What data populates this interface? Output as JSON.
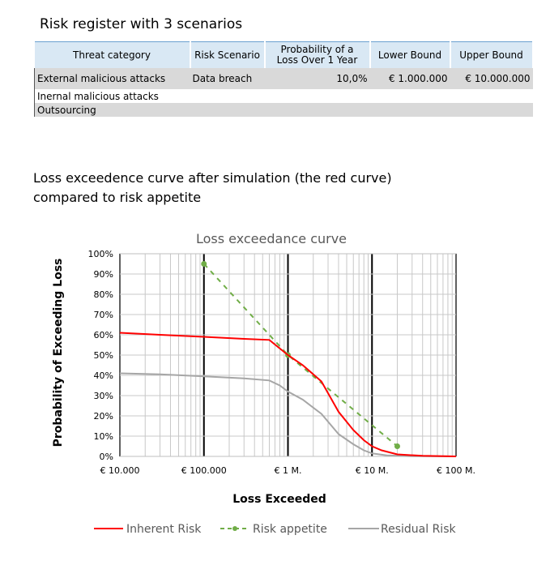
{
  "register": {
    "title": "Risk register with 3 scenarios",
    "headers": [
      "Threat category",
      "Risk Scenario",
      "Probability of a Loss Over 1 Year",
      "Lower Bound",
      "Upper Bound"
    ],
    "rows": [
      [
        "External malicious attacks",
        "Data breach",
        "10,0%",
        "€  1.000.000",
        "€  10.000.000"
      ],
      [
        "Inernal malicious attacks",
        "",
        "",
        "",
        ""
      ],
      [
        "Outsourcing",
        "",
        "",
        "",
        ""
      ]
    ]
  },
  "subtitle_line1": "Loss exceedence curve after simulation (the red curve)",
  "subtitle_line2": "compared to risk appetite",
  "colors": {
    "inherent": "#ff0000",
    "appetite": "#70ad47",
    "residual": "#a6a6a6"
  },
  "chart_data": {
    "type": "line",
    "title": "Loss exceedance curve",
    "xlabel": "Loss Exceeded",
    "ylabel": "Probability of Exceeding Loss",
    "xscale": "log",
    "xlim": [
      10000,
      100000000
    ],
    "ylim": [
      0,
      1
    ],
    "x_ticks": [
      10000,
      100000,
      1000000,
      10000000,
      100000000
    ],
    "x_tick_labels": [
      "€ 10.000",
      "€ 100.000",
      "€ 1 M.",
      "€ 10 M.",
      "€ 100 M."
    ],
    "y_ticks": [
      0,
      0.1,
      0.2,
      0.3,
      0.4,
      0.5,
      0.6,
      0.7,
      0.8,
      0.9,
      1.0
    ],
    "y_tick_labels": [
      "0%",
      "10%",
      "20%",
      "30%",
      "40%",
      "50%",
      "60%",
      "70%",
      "80%",
      "90%",
      "100%"
    ],
    "grid": true,
    "legend_position": "bottom",
    "series": [
      {
        "name": "Inherent Risk",
        "style": "solid",
        "x": [
          10000,
          30000,
          100000,
          300000,
          600000,
          1000000,
          1500000,
          2500000,
          4000000,
          6000000,
          8000000,
          10000000,
          13000000,
          20000000,
          40000000,
          100000000
        ],
        "y": [
          0.61,
          0.6,
          0.59,
          0.58,
          0.575,
          0.5,
          0.45,
          0.37,
          0.22,
          0.13,
          0.08,
          0.05,
          0.03,
          0.01,
          0.003,
          0.0
        ]
      },
      {
        "name": "Risk appetite",
        "style": "dashed",
        "x": [
          100000,
          1000000,
          20000000
        ],
        "y": [
          0.95,
          0.5,
          0.05
        ]
      },
      {
        "name": "Residual Risk",
        "style": "solid",
        "x": [
          10000,
          30000,
          100000,
          300000,
          600000,
          800000,
          1000000,
          1500000,
          2500000,
          4000000,
          6000000,
          8000000,
          10000000,
          15000000,
          30000000,
          100000000
        ],
        "y": [
          0.41,
          0.405,
          0.395,
          0.385,
          0.375,
          0.35,
          0.32,
          0.28,
          0.21,
          0.11,
          0.06,
          0.03,
          0.015,
          0.005,
          0.001,
          0.0
        ]
      }
    ]
  }
}
